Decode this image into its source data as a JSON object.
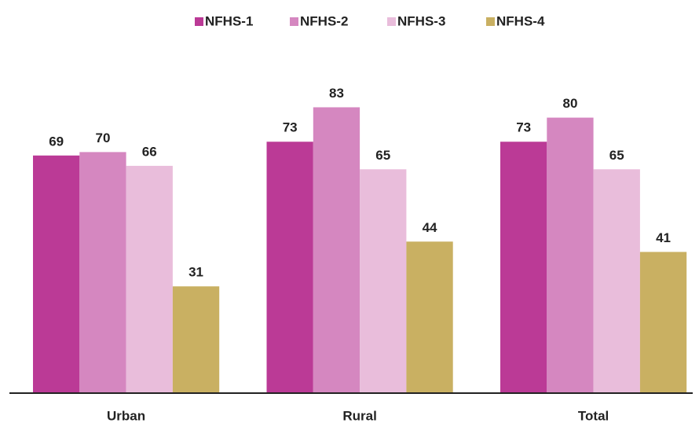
{
  "chart_data": {
    "type": "bar",
    "categories": [
      "Urban",
      "Rural",
      "Total"
    ],
    "series": [
      {
        "name": "NFHS-1",
        "color": "#bb3a96",
        "values": [
          69,
          73,
          73
        ]
      },
      {
        "name": "NFHS-2",
        "color": "#d587c0",
        "values": [
          70,
          83,
          80
        ]
      },
      {
        "name": "NFHS-3",
        "color": "#e9bddb",
        "values": [
          66,
          65,
          65
        ]
      },
      {
        "name": "NFHS-4",
        "color": "#c9b062",
        "values": [
          31,
          44,
          41
        ]
      }
    ],
    "ylim": [
      0,
      100
    ],
    "legend": "top"
  }
}
